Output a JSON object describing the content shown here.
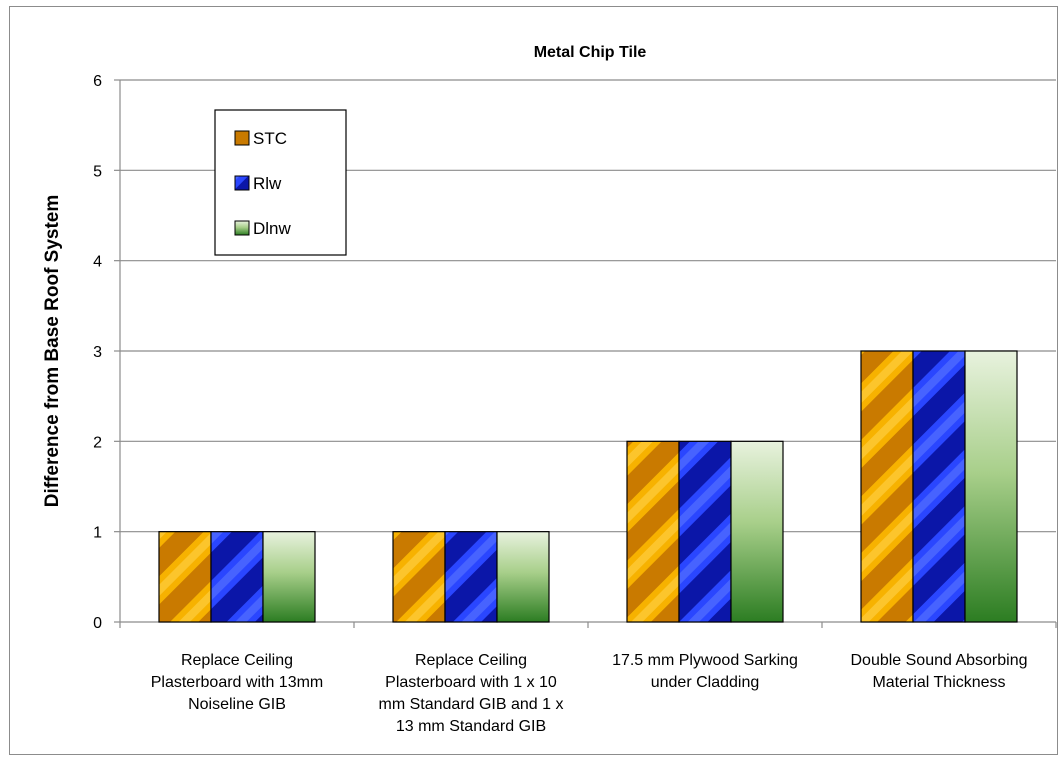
{
  "chart_data": {
    "type": "bar",
    "title": "Metal Chip Tile",
    "xlabel": "",
    "ylabel": "Difference from Base Roof System",
    "ylim": [
      0,
      6
    ],
    "yticks": [
      0,
      1,
      2,
      3,
      4,
      5,
      6
    ],
    "grid": true,
    "legend_position": "top-left",
    "categories": [
      [
        "Replace Ceiling",
        "Plasterboard with 13mm",
        "Noiseline GIB"
      ],
      [
        "Replace Ceiling",
        "Plasterboard with 1 x 10",
        "mm Standard GIB and 1 x",
        "13 mm Standard GIB"
      ],
      [
        "17.5 mm Plywood Sarking",
        "under Cladding"
      ],
      [
        "Double Sound Absorbing",
        "Material Thickness"
      ]
    ],
    "series": [
      {
        "name": "STC",
        "values": [
          1,
          1,
          2,
          3
        ],
        "color": "#f5a000",
        "pattern": "orange-diagonal"
      },
      {
        "name": "Rlw",
        "values": [
          1,
          1,
          2,
          3
        ],
        "color": "#1a2ee6",
        "pattern": "blue-diagonal"
      },
      {
        "name": "Dlnw",
        "values": [
          1,
          1,
          2,
          3
        ],
        "color": "#5aa040",
        "pattern": "green-gradient"
      }
    ]
  }
}
